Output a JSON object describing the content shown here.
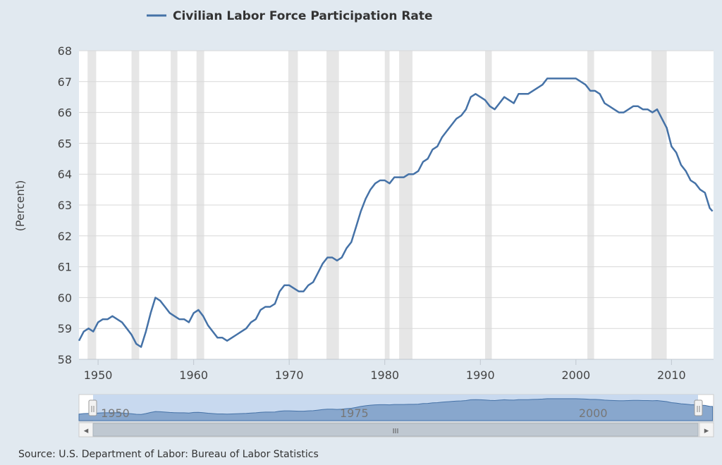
{
  "chart_data": {
    "type": "line",
    "legend": {
      "label": "Civilian Labor Force Participation Rate",
      "position": "top-center"
    },
    "ylabel": "(Percent)",
    "xlabel": "",
    "ylim": [
      58,
      68
    ],
    "xlim": [
      1948,
      2014.4
    ],
    "x_ticks": [
      "1950",
      "1960",
      "1970",
      "1980",
      "1990",
      "2000",
      "2010"
    ],
    "y_ticks": [
      "58",
      "59",
      "60",
      "61",
      "62",
      "63",
      "64",
      "65",
      "66",
      "67",
      "68"
    ],
    "grid": "horizontal",
    "series": [
      {
        "name": "Civilian Labor Force Participation Rate",
        "color": "#4572a7",
        "x": [
          1948.0,
          1948.5,
          1949.0,
          1949.5,
          1950.0,
          1950.5,
          1951.0,
          1951.5,
          1952.0,
          1952.5,
          1953.0,
          1953.5,
          1954.0,
          1954.5,
          1955.0,
          1955.5,
          1956.0,
          1956.5,
          1957.0,
          1957.5,
          1958.0,
          1958.5,
          1959.0,
          1959.5,
          1960.0,
          1960.5,
          1961.0,
          1961.5,
          1962.0,
          1962.5,
          1963.0,
          1963.5,
          1964.0,
          1964.5,
          1965.0,
          1965.5,
          1966.0,
          1966.5,
          1967.0,
          1967.5,
          1968.0,
          1968.5,
          1969.0,
          1969.5,
          1970.0,
          1970.5,
          1971.0,
          1971.5,
          1972.0,
          1972.5,
          1973.0,
          1973.5,
          1974.0,
          1974.5,
          1975.0,
          1975.5,
          1976.0,
          1976.5,
          1977.0,
          1977.5,
          1978.0,
          1978.5,
          1979.0,
          1979.5,
          1980.0,
          1980.5,
          1981.0,
          1981.5,
          1982.0,
          1982.5,
          1983.0,
          1983.5,
          1984.0,
          1984.5,
          1985.0,
          1985.5,
          1986.0,
          1986.5,
          1987.0,
          1987.5,
          1988.0,
          1988.5,
          1989.0,
          1989.5,
          1990.0,
          1990.5,
          1991.0,
          1991.5,
          1992.0,
          1992.5,
          1993.0,
          1993.5,
          1994.0,
          1994.5,
          1995.0,
          1995.5,
          1996.0,
          1996.5,
          1997.0,
          1997.5,
          1998.0,
          1998.5,
          1999.0,
          1999.5,
          2000.0,
          2000.5,
          2001.0,
          2001.5,
          2002.0,
          2002.5,
          2003.0,
          2003.5,
          2004.0,
          2004.5,
          2005.0,
          2005.5,
          2006.0,
          2006.5,
          2007.0,
          2007.5,
          2008.0,
          2008.5,
          2009.0,
          2009.5,
          2010.0,
          2010.5,
          2011.0,
          2011.5,
          2012.0,
          2012.5,
          2013.0,
          2013.5,
          2014.0,
          2014.3
        ],
        "values": [
          58.6,
          58.9,
          59.0,
          58.9,
          59.2,
          59.3,
          59.3,
          59.4,
          59.3,
          59.2,
          59.0,
          58.8,
          58.5,
          58.4,
          58.9,
          59.5,
          60.0,
          59.9,
          59.7,
          59.5,
          59.4,
          59.3,
          59.3,
          59.2,
          59.5,
          59.6,
          59.4,
          59.1,
          58.9,
          58.7,
          58.7,
          58.6,
          58.7,
          58.8,
          58.9,
          59.0,
          59.2,
          59.3,
          59.6,
          59.7,
          59.7,
          59.8,
          60.2,
          60.4,
          60.4,
          60.3,
          60.2,
          60.2,
          60.4,
          60.5,
          60.8,
          61.1,
          61.3,
          61.3,
          61.2,
          61.3,
          61.6,
          61.8,
          62.3,
          62.8,
          63.2,
          63.5,
          63.7,
          63.8,
          63.8,
          63.7,
          63.9,
          63.9,
          63.9,
          64.0,
          64.0,
          64.1,
          64.4,
          64.5,
          64.8,
          64.9,
          65.2,
          65.4,
          65.6,
          65.8,
          65.9,
          66.1,
          66.5,
          66.6,
          66.5,
          66.4,
          66.2,
          66.1,
          66.3,
          66.5,
          66.4,
          66.3,
          66.6,
          66.6,
          66.6,
          66.7,
          66.8,
          66.9,
          67.1,
          67.1,
          67.1,
          67.1,
          67.1,
          67.1,
          67.1,
          67.0,
          66.9,
          66.7,
          66.7,
          66.6,
          66.3,
          66.2,
          66.1,
          66.0,
          66.0,
          66.1,
          66.2,
          66.2,
          66.1,
          66.1,
          66.0,
          66.1,
          65.8,
          65.5,
          64.9,
          64.7,
          64.3,
          64.1,
          63.8,
          63.7,
          63.5,
          63.4,
          62.9,
          62.8
        ]
      }
    ],
    "recession_bands": [
      [
        1948.9,
        1949.8
      ],
      [
        1953.5,
        1954.3
      ],
      [
        1957.6,
        1958.3
      ],
      [
        1960.3,
        1961.1
      ],
      [
        1969.9,
        1970.9
      ],
      [
        1973.9,
        1975.2
      ],
      [
        1980.0,
        1980.5
      ],
      [
        1981.5,
        1982.9
      ],
      [
        1990.5,
        1991.2
      ],
      [
        2001.2,
        2001.9
      ],
      [
        2007.9,
        2009.5
      ]
    ]
  },
  "navigator": {
    "labels": [
      "1950",
      "1975",
      "2000"
    ],
    "scroll_label": "III",
    "left_arrow": "◂",
    "right_arrow": "▸",
    "handle_glyph": "||"
  },
  "source": "Source: U.S. Department of Labor: Bureau of Labor Statistics"
}
